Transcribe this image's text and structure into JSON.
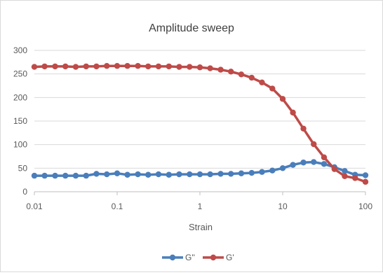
{
  "chart_data": {
    "type": "line",
    "title": "Amplitude sweep",
    "xlabel": "Strain",
    "ylabel": "",
    "x_scale": "log",
    "xlim": [
      0.01,
      100
    ],
    "ylim": [
      0,
      300
    ],
    "x_ticks": [
      0.01,
      0.1,
      1,
      10,
      100
    ],
    "x_tick_labels": [
      "0.01",
      "0.1",
      "1",
      "10",
      "100"
    ],
    "y_ticks": [
      0,
      50,
      100,
      150,
      200,
      250,
      300
    ],
    "y_tick_labels": [
      "0",
      "50",
      "100",
      "150",
      "200",
      "250",
      "300"
    ],
    "grid": "horizontal",
    "legend_position": "bottom",
    "series": [
      {
        "name": "G''",
        "color": "#4a7ebb",
        "x": [
          0.01,
          0.0133,
          0.0178,
          0.0237,
          0.0316,
          0.0422,
          0.0562,
          0.075,
          0.1,
          0.133,
          0.178,
          0.237,
          0.316,
          0.422,
          0.562,
          0.75,
          1,
          1.33,
          1.78,
          2.37,
          3.16,
          4.22,
          5.62,
          7.5,
          10,
          13.3,
          17.8,
          23.7,
          31.6,
          42.2,
          56.2,
          75,
          100
        ],
        "values": [
          34,
          34,
          34,
          34,
          34,
          34,
          38,
          37,
          39,
          36,
          37,
          36,
          37,
          36,
          37,
          37,
          37,
          37,
          38,
          38,
          39,
          40,
          42,
          45,
          50,
          57,
          62,
          63,
          59,
          52,
          44,
          36,
          35
        ]
      },
      {
        "name": "G'",
        "color": "#be4b48",
        "x": [
          0.01,
          0.0133,
          0.0178,
          0.0237,
          0.0316,
          0.0422,
          0.0562,
          0.075,
          0.1,
          0.133,
          0.178,
          0.237,
          0.316,
          0.422,
          0.562,
          0.75,
          1,
          1.33,
          1.78,
          2.37,
          3.16,
          4.22,
          5.62,
          7.5,
          10,
          13.3,
          17.8,
          23.7,
          31.6,
          42.2,
          56.2,
          75,
          100
        ],
        "values": [
          265,
          266,
          266,
          266,
          265,
          266,
          266,
          267,
          267,
          267,
          267,
          266,
          266,
          266,
          265,
          265,
          264,
          262,
          259,
          255,
          249,
          242,
          232,
          219,
          197,
          168,
          134,
          101,
          73,
          48,
          33,
          29,
          21
        ]
      }
    ]
  }
}
